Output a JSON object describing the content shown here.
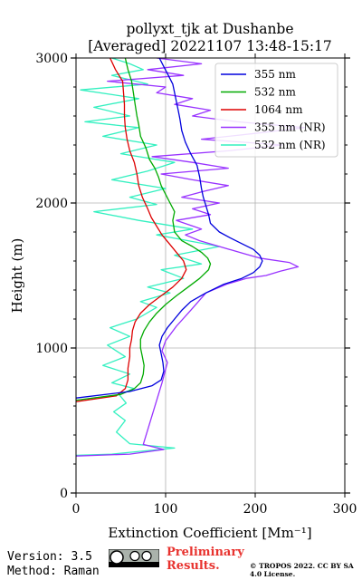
{
  "chart_data": {
    "type": "line",
    "title": "pollyxt_tjk at Dushanbe",
    "subtitle": "[Averaged] 20221107 13:48-15:17",
    "xlabel": "Extinction Coefficient [Mm⁻¹]",
    "ylabel": "Height (m)",
    "xlim": [
      0,
      300
    ],
    "ylim": [
      0,
      3000
    ],
    "xticks": [
      "0",
      "100",
      "200",
      "300"
    ],
    "yticks": [
      "0",
      "1000",
      "2000",
      "3000"
    ],
    "grid": true,
    "legend_position": "top-right",
    "series": [
      {
        "name": "355 nm",
        "color": "#0000dd",
        "points": [
          [
            0,
            655
          ],
          [
            60,
            700
          ],
          [
            85,
            740
          ],
          [
            95,
            780
          ],
          [
            98,
            840
          ],
          [
            97,
            900
          ],
          [
            95,
            960
          ],
          [
            93,
            1020
          ],
          [
            96,
            1080
          ],
          [
            102,
            1140
          ],
          [
            110,
            1200
          ],
          [
            118,
            1260
          ],
          [
            128,
            1320
          ],
          [
            145,
            1380
          ],
          [
            165,
            1440
          ],
          [
            185,
            1480
          ],
          [
            198,
            1520
          ],
          [
            205,
            1560
          ],
          [
            208,
            1600
          ],
          [
            205,
            1640
          ],
          [
            198,
            1680
          ],
          [
            185,
            1720
          ],
          [
            172,
            1760
          ],
          [
            160,
            1800
          ],
          [
            150,
            1860
          ],
          [
            148,
            1920
          ],
          [
            145,
            1980
          ],
          [
            142,
            2040
          ],
          [
            140,
            2100
          ],
          [
            138,
            2180
          ],
          [
            135,
            2260
          ],
          [
            128,
            2340
          ],
          [
            122,
            2420
          ],
          [
            118,
            2500
          ],
          [
            116,
            2580
          ],
          [
            114,
            2640
          ],
          [
            112,
            2700
          ],
          [
            110,
            2760
          ],
          [
            108,
            2820
          ],
          [
            103,
            2880
          ],
          [
            98,
            2940
          ],
          [
            93,
            3000
          ]
        ]
      },
      {
        "name": "532 nm",
        "color": "#00aa00",
        "points": [
          [
            0,
            640
          ],
          [
            50,
            680
          ],
          [
            65,
            720
          ],
          [
            72,
            760
          ],
          [
            75,
            820
          ],
          [
            76,
            880
          ],
          [
            74,
            940
          ],
          [
            72,
            1000
          ],
          [
            72,
            1060
          ],
          [
            76,
            1120
          ],
          [
            82,
            1180
          ],
          [
            90,
            1240
          ],
          [
            100,
            1300
          ],
          [
            112,
            1360
          ],
          [
            125,
            1420
          ],
          [
            138,
            1480
          ],
          [
            148,
            1540
          ],
          [
            150,
            1580
          ],
          [
            147,
            1620
          ],
          [
            140,
            1660
          ],
          [
            130,
            1700
          ],
          [
            118,
            1740
          ],
          [
            110,
            1800
          ],
          [
            108,
            1880
          ],
          [
            110,
            1940
          ],
          [
            105,
            2000
          ],
          [
            100,
            2060
          ],
          [
            95,
            2120
          ],
          [
            92,
            2180
          ],
          [
            88,
            2240
          ],
          [
            82,
            2300
          ],
          [
            78,
            2380
          ],
          [
            72,
            2460
          ],
          [
            70,
            2540
          ],
          [
            68,
            2600
          ],
          [
            66,
            2680
          ],
          [
            64,
            2760
          ],
          [
            62,
            2840
          ],
          [
            58,
            2920
          ],
          [
            55,
            3000
          ]
        ]
      },
      {
        "name": "1064 nm",
        "color": "#dd0000",
        "points": [
          [
            0,
            630
          ],
          [
            45,
            670
          ],
          [
            55,
            720
          ],
          [
            58,
            780
          ],
          [
            58,
            860
          ],
          [
            60,
            940
          ],
          [
            60,
            1000
          ],
          [
            62,
            1060
          ],
          [
            63,
            1120
          ],
          [
            66,
            1180
          ],
          [
            72,
            1240
          ],
          [
            82,
            1300
          ],
          [
            95,
            1360
          ],
          [
            108,
            1420
          ],
          [
            118,
            1480
          ],
          [
            123,
            1540
          ],
          [
            120,
            1600
          ],
          [
            112,
            1660
          ],
          [
            104,
            1720
          ],
          [
            96,
            1780
          ],
          [
            90,
            1840
          ],
          [
            84,
            1900
          ],
          [
            80,
            1960
          ],
          [
            74,
            2040
          ],
          [
            70,
            2120
          ],
          [
            68,
            2200
          ],
          [
            65,
            2280
          ],
          [
            60,
            2360
          ],
          [
            57,
            2440
          ],
          [
            55,
            2520
          ],
          [
            54,
            2600
          ],
          [
            54,
            2680
          ],
          [
            53,
            2760
          ],
          [
            52,
            2840
          ],
          [
            44,
            2920
          ],
          [
            38,
            3000
          ]
        ]
      },
      {
        "name": "355 nm (NR)",
        "color": "#9933ff",
        "points": [
          [
            0,
            255
          ],
          [
            60,
            268
          ],
          [
            98,
            300
          ],
          [
            75,
            335
          ],
          [
            96,
            760
          ],
          [
            102,
            900
          ],
          [
            96,
            980
          ],
          [
            100,
            1050
          ],
          [
            112,
            1150
          ],
          [
            128,
            1260
          ],
          [
            145,
            1380
          ],
          [
            168,
            1440
          ],
          [
            190,
            1480
          ],
          [
            212,
            1500
          ],
          [
            228,
            1530
          ],
          [
            248,
            1560
          ],
          [
            238,
            1590
          ],
          [
            205,
            1620
          ],
          [
            188,
            1650
          ],
          [
            160,
            1700
          ],
          [
            138,
            1740
          ],
          [
            122,
            1780
          ],
          [
            140,
            1820
          ],
          [
            112,
            1880
          ],
          [
            150,
            1920
          ],
          [
            130,
            1960
          ],
          [
            160,
            2000
          ],
          [
            118,
            2040
          ],
          [
            142,
            2080
          ],
          [
            170,
            2120
          ],
          [
            130,
            2160
          ],
          [
            95,
            2200
          ],
          [
            170,
            2240
          ],
          [
            130,
            2280
          ],
          [
            85,
            2320
          ],
          [
            170,
            2360
          ],
          [
            230,
            2400
          ],
          [
            140,
            2440
          ],
          [
            200,
            2480
          ],
          [
            255,
            2520
          ],
          [
            180,
            2560
          ],
          [
            130,
            2600
          ],
          [
            150,
            2640
          ],
          [
            110,
            2680
          ],
          [
            130,
            2720
          ],
          [
            90,
            2760
          ],
          [
            100,
            2800
          ],
          [
            35,
            2840
          ],
          [
            120,
            2880
          ],
          [
            80,
            2920
          ],
          [
            140,
            2960
          ],
          [
            90,
            3000
          ]
        ]
      },
      {
        "name": "532 nm (NR)",
        "color": "#33f0c0",
        "points": [
          [
            0,
            260
          ],
          [
            40,
            268
          ],
          [
            110,
            310
          ],
          [
            60,
            340
          ],
          [
            45,
            420
          ],
          [
            55,
            500
          ],
          [
            42,
            560
          ],
          [
            56,
            620
          ],
          [
            48,
            680
          ],
          [
            65,
            720
          ],
          [
            40,
            760
          ],
          [
            60,
            820
          ],
          [
            30,
            880
          ],
          [
            55,
            940
          ],
          [
            35,
            1020
          ],
          [
            60,
            1080
          ],
          [
            38,
            1140
          ],
          [
            68,
            1200
          ],
          [
            90,
            1280
          ],
          [
            72,
            1320
          ],
          [
            105,
            1380
          ],
          [
            80,
            1420
          ],
          [
            120,
            1480
          ],
          [
            95,
            1540
          ],
          [
            140,
            1580
          ],
          [
            110,
            1640
          ],
          [
            160,
            1700
          ],
          [
            125,
            1740
          ],
          [
            90,
            1780
          ],
          [
            130,
            1820
          ],
          [
            70,
            1880
          ],
          [
            20,
            1940
          ],
          [
            90,
            1990
          ],
          [
            60,
            2040
          ],
          [
            100,
            2100
          ],
          [
            40,
            2160
          ],
          [
            80,
            2220
          ],
          [
            110,
            2280
          ],
          [
            50,
            2340
          ],
          [
            90,
            2400
          ],
          [
            30,
            2460
          ],
          [
            70,
            2520
          ],
          [
            10,
            2560
          ],
          [
            60,
            2600
          ],
          [
            20,
            2660
          ],
          [
            70,
            2720
          ],
          [
            5,
            2780
          ],
          [
            80,
            2820
          ],
          [
            40,
            2880
          ],
          [
            75,
            2920
          ],
          [
            60,
            2960
          ],
          [
            40,
            3000
          ]
        ]
      }
    ]
  },
  "footer": {
    "version": "Version: 3.5",
    "method": "Method: Raman",
    "preliminary": "Preliminary Results.",
    "copyright": "© TROPOS 2022. CC BY SA 4.0 License."
  }
}
